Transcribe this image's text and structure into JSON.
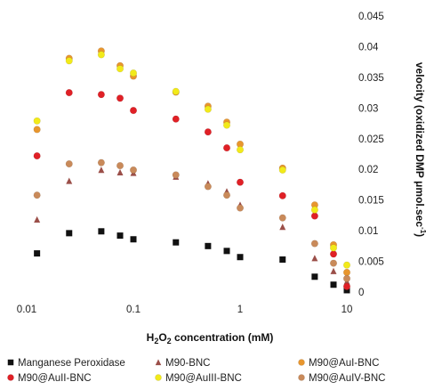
{
  "chart_data": {
    "type": "scatter",
    "xscale": "log",
    "xlim": [
      0.01,
      10
    ],
    "ylim": [
      0,
      0.045
    ],
    "x_ticks": [
      "0.01",
      "0.1",
      "1",
      "10"
    ],
    "y_ticks": [
      "0",
      "0.005",
      "0.01",
      "0.015",
      "0.02",
      "0.025",
      "0.03",
      "0.035",
      "0.04",
      "0.045"
    ],
    "xlabel": {
      "main": "H",
      "sub": "2",
      "mid": "O",
      "sub2": "2",
      "rest": " concentration (mM)"
    },
    "ylabel": {
      "main": "velocity (oxidized DMP μmol.sec",
      "sup": "-1",
      "end": ")"
    },
    "grid": false,
    "legend_position": "bottom",
    "series": [
      {
        "name": "Manganese Peroxidase",
        "marker": "square",
        "color": "#111111",
        "points": [
          [
            0.0125,
            0.0063
          ],
          [
            0.025,
            0.0096
          ],
          [
            0.05,
            0.0099
          ],
          [
            0.075,
            0.0092
          ],
          [
            0.1,
            0.0086
          ],
          [
            0.25,
            0.0081
          ],
          [
            0.5,
            0.0075
          ],
          [
            0.75,
            0.0067
          ],
          [
            1,
            0.0057
          ],
          [
            2.5,
            0.0053
          ],
          [
            5,
            0.0025
          ],
          [
            7.5,
            0.0012
          ],
          [
            10,
            0.0003
          ]
        ]
      },
      {
        "name": "M90-BNC",
        "marker": "triangle",
        "color": "#9b4f49",
        "points": [
          [
            0.0125,
            0.0118
          ],
          [
            0.025,
            0.0181
          ],
          [
            0.05,
            0.0199
          ],
          [
            0.075,
            0.0195
          ],
          [
            0.1,
            0.0194
          ],
          [
            0.25,
            0.0188
          ],
          [
            0.5,
            0.0177
          ],
          [
            0.75,
            0.0164
          ],
          [
            1,
            0.0142
          ],
          [
            2.5,
            0.0106
          ],
          [
            5,
            0.0055
          ],
          [
            7.5,
            0.0034
          ],
          [
            10,
            0.0017
          ]
        ]
      },
      {
        "name": "M90@AuI-BNC",
        "marker": "circle",
        "color": "#e8962e",
        "points": [
          [
            0.0125,
            0.0265
          ],
          [
            0.025,
            0.0381
          ],
          [
            0.05,
            0.0393
          ],
          [
            0.075,
            0.0369
          ],
          [
            0.1,
            0.0352
          ],
          [
            0.25,
            0.0326
          ],
          [
            0.5,
            0.0303
          ],
          [
            0.75,
            0.0277
          ],
          [
            1,
            0.0241
          ],
          [
            2.5,
            0.0202
          ],
          [
            5,
            0.0142
          ],
          [
            7.5,
            0.0077
          ],
          [
            10,
            0.0032
          ]
        ]
      },
      {
        "name": "M90@AuII-BNC",
        "marker": "circle",
        "color": "#e02026",
        "points": [
          [
            0.0125,
            0.0222
          ],
          [
            0.025,
            0.0325
          ],
          [
            0.05,
            0.0322
          ],
          [
            0.075,
            0.0316
          ],
          [
            0.1,
            0.0296
          ],
          [
            0.25,
            0.0282
          ],
          [
            0.5,
            0.0261
          ],
          [
            0.75,
            0.0235
          ],
          [
            1,
            0.0179
          ],
          [
            2.5,
            0.0157
          ],
          [
            5,
            0.0124
          ],
          [
            7.5,
            0.0062
          ],
          [
            10,
            0.0009
          ]
        ]
      },
      {
        "name": "M90@AuIII-BNC",
        "marker": "circle",
        "color": "#f2ea1a",
        "points": [
          [
            0.0125,
            0.0279
          ],
          [
            0.025,
            0.0377
          ],
          [
            0.05,
            0.0387
          ],
          [
            0.075,
            0.0364
          ],
          [
            0.1,
            0.0357
          ],
          [
            0.25,
            0.0327
          ],
          [
            0.5,
            0.0298
          ],
          [
            0.75,
            0.0272
          ],
          [
            1,
            0.0232
          ],
          [
            2.5,
            0.0199
          ],
          [
            5,
            0.0134
          ],
          [
            7.5,
            0.0072
          ],
          [
            10,
            0.0044
          ]
        ]
      },
      {
        "name": "M90@AuIV-BNC",
        "marker": "circle",
        "color": "#c98a5a",
        "points": [
          [
            0.0125,
            0.0158
          ],
          [
            0.025,
            0.0209
          ],
          [
            0.05,
            0.0211
          ],
          [
            0.075,
            0.0206
          ],
          [
            0.1,
            0.0199
          ],
          [
            0.25,
            0.0191
          ],
          [
            0.5,
            0.0172
          ],
          [
            0.75,
            0.0158
          ],
          [
            1,
            0.0137
          ],
          [
            2.5,
            0.0121
          ],
          [
            5,
            0.0079
          ],
          [
            7.5,
            0.0047
          ],
          [
            10,
            0.0022
          ]
        ]
      }
    ]
  }
}
